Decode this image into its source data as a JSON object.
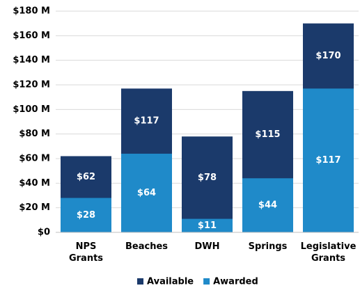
{
  "chart_data": {
    "type": "bar",
    "categories": [
      "NPS Grants",
      "Beaches",
      "DWH",
      "Springs",
      "Legislative Grants"
    ],
    "series": [
      {
        "name": "Available",
        "color": "#1b3a6b",
        "values": [
          62,
          117,
          78,
          115,
          170
        ],
        "value_labels": [
          "$62",
          "$117",
          "$78",
          "$115",
          "$170"
        ]
      },
      {
        "name": "Awarded",
        "color": "#1f8ac9",
        "values": [
          28,
          64,
          11,
          44,
          117
        ],
        "value_labels": [
          "$28",
          "$64",
          "$11",
          "$44",
          "$117"
        ]
      }
    ],
    "ylim": [
      0,
      180
    ],
    "yticks": [
      {
        "value": 0,
        "label": "$0"
      },
      {
        "value": 20,
        "label": "$20 M"
      },
      {
        "value": 40,
        "label": "$40 M"
      },
      {
        "value": 60,
        "label": "$60 M"
      },
      {
        "value": 80,
        "label": "$80 M"
      },
      {
        "value": 100,
        "label": "$100 M"
      },
      {
        "value": 120,
        "label": "$120 M"
      },
      {
        "value": 140,
        "label": "$140 M"
      },
      {
        "value": 160,
        "label": "$160 M"
      },
      {
        "value": 180,
        "label": "$180 M"
      }
    ],
    "grid": true,
    "legend": "bottom"
  }
}
